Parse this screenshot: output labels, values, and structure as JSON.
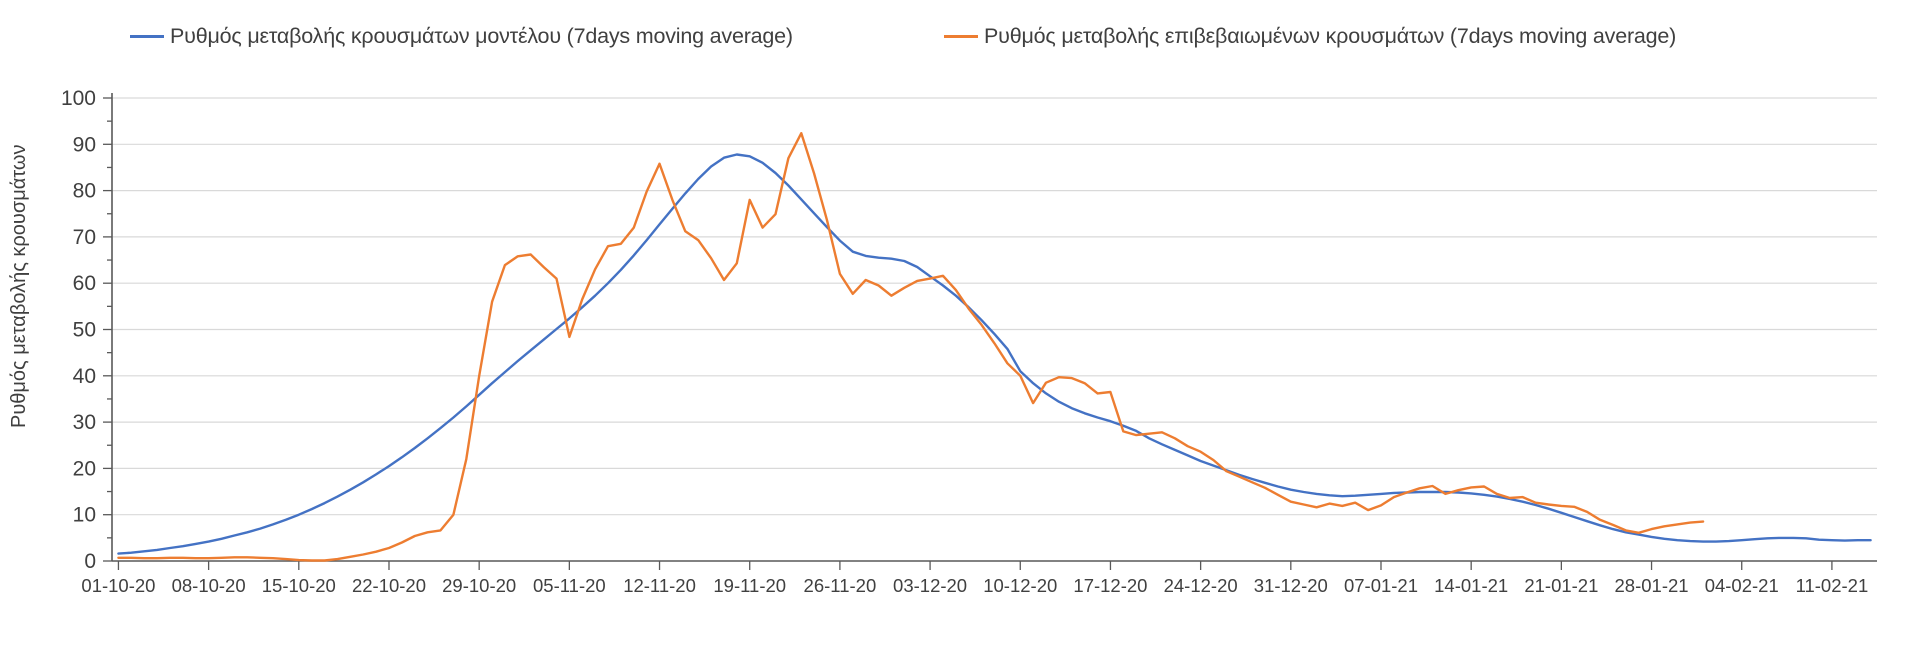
{
  "legend": {
    "items": [
      {
        "label": "Ρυθμός μεταβολής κρουσμάτων μοντέλου (7days moving average)",
        "color": "#4472C4"
      },
      {
        "label": "Ρυθμός μεταβολής επιβεβαιωμένων κρουσμάτων (7days moving average)",
        "color": "#ED7D31"
      }
    ]
  },
  "y_axis_title": "Ρυθμός μεταβολής κρουσμάτων",
  "chart_data": {
    "type": "line",
    "title": "",
    "xlabel": "",
    "ylabel": "Ρυθμός μεταβολής κρουσμάτων",
    "ylim": [
      0,
      100
    ],
    "y_tick_step": 10,
    "y_minor_tick_step": 5,
    "y_tick_labels": [
      "0",
      "10",
      "20",
      "30",
      "40",
      "50",
      "60",
      "70",
      "80",
      "90",
      "100"
    ],
    "grid": true,
    "legend_position": "top",
    "x_tick_labels": [
      "01-10-20",
      "08-10-20",
      "15-10-20",
      "22-10-20",
      "29-10-20",
      "05-11-20",
      "12-11-20",
      "19-11-20",
      "26-11-20",
      "03-12-20",
      "10-12-20",
      "17-12-20",
      "24-12-20",
      "31-12-20",
      "07-01-21",
      "14-01-21",
      "21-01-21",
      "28-01-21",
      "04-02-21",
      "11-02-21"
    ],
    "x_tick_every_n_points": 7,
    "total_points": 137,
    "colors": {
      "gridline": "#D9D9D9",
      "axis": "#595959",
      "tick": "#595959",
      "label": "#404040"
    },
    "series": [
      {
        "name": "Ρυθμός μεταβολής κρουσμάτων μοντέλου (7days moving average)",
        "color": "#4472C4",
        "first_x_label": "01-10-20",
        "values": [
          1.6,
          1.8,
          2.1,
          2.4,
          2.8,
          3.2,
          3.7,
          4.2,
          4.8,
          5.5,
          6.2,
          7.0,
          7.9,
          8.9,
          10.0,
          11.2,
          12.5,
          13.9,
          15.4,
          17.0,
          18.7,
          20.5,
          22.4,
          24.4,
          26.5,
          28.7,
          31.0,
          33.4,
          35.9,
          38.4,
          40.8,
          43.2,
          45.5,
          47.8,
          50.1,
          52.4,
          54.8,
          57.3,
          60.0,
          62.9,
          66.0,
          69.3,
          72.7,
          76.1,
          79.4,
          82.5,
          85.2,
          87.1,
          87.8,
          87.4,
          86.0,
          83.8,
          81.1,
          78.1,
          75.1,
          72.1,
          69.2,
          66.8,
          65.9,
          65.5,
          65.3,
          64.8,
          63.5,
          61.5,
          59.5,
          57.3,
          54.8,
          52.0,
          49.0,
          45.8,
          41.0,
          38.4,
          36.2,
          34.4,
          33.0,
          31.9,
          31.0,
          30.2,
          29.2,
          28.1,
          26.5,
          25.2,
          24.0,
          22.8,
          21.6,
          20.6,
          19.6,
          18.6,
          17.7,
          16.9,
          16.1,
          15.4,
          14.9,
          14.5,
          14.2,
          14.0,
          14.1,
          14.3,
          14.5,
          14.7,
          14.8,
          14.9,
          14.9,
          14.9,
          14.8,
          14.6,
          14.3,
          13.9,
          13.4,
          12.8,
          12.1,
          11.3,
          10.4,
          9.5,
          8.6,
          7.7,
          6.9,
          6.2,
          5.7,
          5.2,
          4.8,
          4.5,
          4.3,
          4.2,
          4.2,
          4.3,
          4.5,
          4.7,
          4.9,
          5.0,
          5.0,
          4.9,
          4.6,
          4.5,
          4.4,
          4.5,
          4.5
        ]
      },
      {
        "name": "Ρυθμός μεταβολής επιβεβαιωμένων κρουσμάτων (7days moving average)",
        "color": "#ED7D31",
        "first_x_label": "01-10-20",
        "values": [
          0.7,
          0.7,
          0.6,
          0.6,
          0.7,
          0.7,
          0.6,
          0.6,
          0.7,
          0.8,
          0.8,
          0.7,
          0.6,
          0.4,
          0.2,
          0.1,
          0.1,
          0.4,
          0.9,
          1.4,
          2.0,
          2.8,
          4.0,
          5.4,
          6.2,
          6.6,
          10.0,
          22.0,
          40.0,
          56.0,
          63.9,
          65.8,
          66.2,
          63.5,
          61.0,
          48.4,
          56.5,
          63.0,
          68.0,
          68.5,
          72.0,
          79.8,
          85.8,
          78.0,
          71.2,
          69.3,
          65.4,
          60.7,
          64.3,
          78.0,
          72.0,
          74.9,
          87.0,
          92.4,
          83.7,
          73.6,
          62.0,
          57.7,
          60.7,
          59.5,
          57.3,
          59.0,
          60.5,
          61.0,
          61.6,
          58.5,
          54.5,
          51.0,
          47.0,
          42.7,
          40.0,
          34.1,
          38.5,
          39.7,
          39.5,
          38.4,
          36.2,
          36.5,
          28.0,
          27.2,
          27.5,
          27.8,
          26.5,
          24.8,
          23.6,
          21.8,
          19.4,
          18.2,
          17.0,
          15.8,
          14.3,
          12.8,
          12.2,
          11.6,
          12.4,
          11.9,
          12.6,
          11.0,
          12.0,
          13.8,
          14.8,
          15.7,
          16.2,
          14.5,
          15.3,
          15.9,
          16.1,
          14.5,
          13.6,
          13.8,
          12.6,
          12.2,
          11.9,
          11.7,
          10.6,
          8.9,
          7.8,
          6.6,
          6.1,
          6.9,
          7.5,
          7.9,
          8.3,
          8.5
        ]
      }
    ]
  }
}
